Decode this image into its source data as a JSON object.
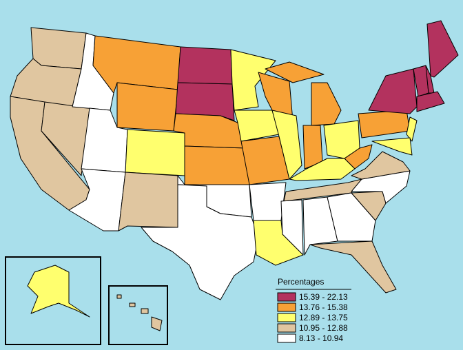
{
  "legend": {
    "title": "Percentages",
    "classes": [
      {
        "label": "15.39 - 22.13",
        "color": "#b3325e"
      },
      {
        "label": "13.76 - 15.38",
        "color": "#f7a136"
      },
      {
        "label": "12.89 - 13.75",
        "color": "#ffff6e"
      },
      {
        "label": "10.95 - 12.88",
        "color": "#e0c6a0"
      },
      {
        "label": "8.13 - 10.94",
        "color": "#ffffff"
      }
    ]
  }
}
